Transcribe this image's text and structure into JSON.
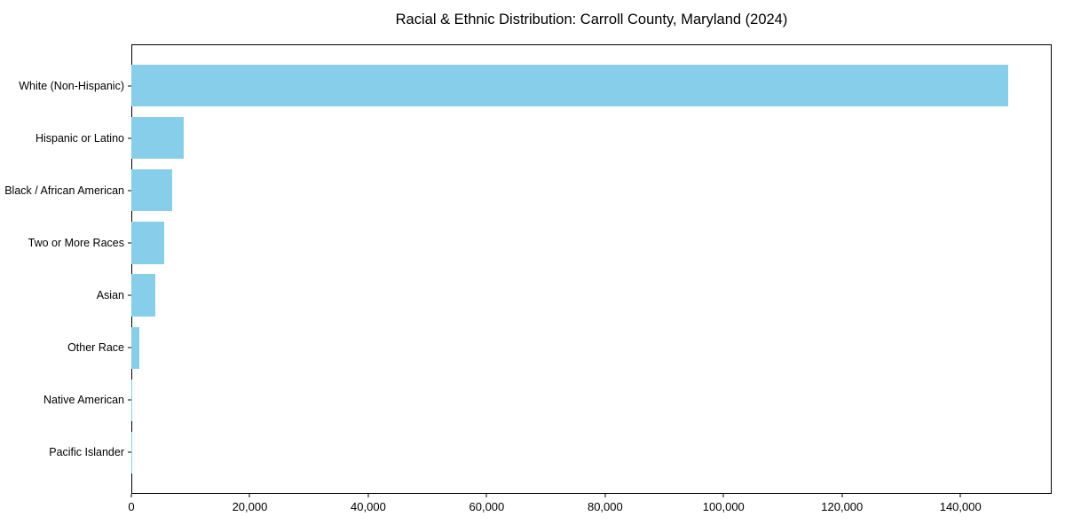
{
  "title": "Racial & Ethnic Distribution: Carroll County, Maryland (2024)",
  "chart_data": {
    "type": "bar",
    "orientation": "horizontal",
    "title": "Racial & Ethnic Distribution: Carroll County, Maryland (2024)",
    "categories": [
      "White (Non-Hispanic)",
      "Hispanic or Latino",
      "Black / African American",
      "Two or More Races",
      "Asian",
      "Other Race",
      "Native American",
      "Pacific Islander"
    ],
    "values": [
      148000,
      8900,
      6900,
      5600,
      4100,
      1350,
      150,
      40
    ],
    "xlabel": "",
    "ylabel": "",
    "xlim": [
      0,
      155400
    ],
    "xticks": [
      0,
      20000,
      40000,
      60000,
      80000,
      100000,
      120000,
      140000
    ],
    "xtick_labels": [
      "0",
      "20,000",
      "40,000",
      "60,000",
      "80,000",
      "100,000",
      "120,000",
      "140,000"
    ],
    "bar_color": "#87CEEB",
    "text_color": "#000000",
    "grid": false,
    "legend": null
  }
}
